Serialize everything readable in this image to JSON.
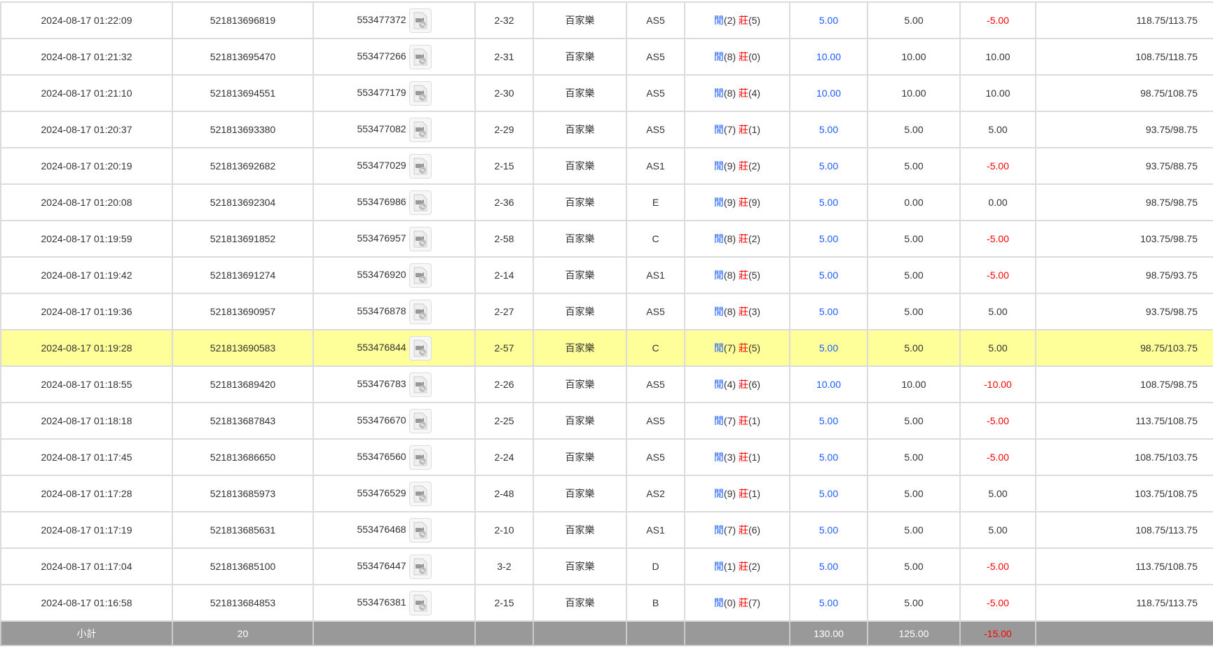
{
  "rows": [
    {
      "time": "2024-08-17 01:22:09",
      "bet_id": "521813696819",
      "round_id": "553477372",
      "table": "2-32",
      "game": "百家樂",
      "bet_type": "AS5",
      "player_label": "閒",
      "player": "(2)",
      "banker_label": "莊",
      "banker": "(5)",
      "bet": "5.00",
      "valid": "5.00",
      "win": "-5.00",
      "win_neg": true,
      "balance": "118.75/113.75"
    },
    {
      "time": "2024-08-17 01:21:32",
      "bet_id": "521813695470",
      "round_id": "553477266",
      "table": "2-31",
      "game": "百家樂",
      "bet_type": "AS5",
      "player_label": "閒",
      "player": "(8)",
      "banker_label": "莊",
      "banker": "(0)",
      "bet": "10.00",
      "valid": "10.00",
      "win": "10.00",
      "win_neg": false,
      "balance": "108.75/118.75"
    },
    {
      "time": "2024-08-17 01:21:10",
      "bet_id": "521813694551",
      "round_id": "553477179",
      "table": "2-30",
      "game": "百家樂",
      "bet_type": "AS5",
      "player_label": "閒",
      "player": "(8)",
      "banker_label": "莊",
      "banker": "(4)",
      "bet": "10.00",
      "valid": "10.00",
      "win": "10.00",
      "win_neg": false,
      "balance": "98.75/108.75"
    },
    {
      "time": "2024-08-17 01:20:37",
      "bet_id": "521813693380",
      "round_id": "553477082",
      "table": "2-29",
      "game": "百家樂",
      "bet_type": "AS5",
      "player_label": "閒",
      "player": "(7)",
      "banker_label": "莊",
      "banker": "(1)",
      "bet": "5.00",
      "valid": "5.00",
      "win": "5.00",
      "win_neg": false,
      "balance": "93.75/98.75"
    },
    {
      "time": "2024-08-17 01:20:19",
      "bet_id": "521813692682",
      "round_id": "553477029",
      "table": "2-15",
      "game": "百家樂",
      "bet_type": "AS1",
      "player_label": "閒",
      "player": "(9)",
      "banker_label": "莊",
      "banker": "(2)",
      "bet": "5.00",
      "valid": "5.00",
      "win": "-5.00",
      "win_neg": true,
      "balance": "93.75/88.75"
    },
    {
      "time": "2024-08-17 01:20:08",
      "bet_id": "521813692304",
      "round_id": "553476986",
      "table": "2-36",
      "game": "百家樂",
      "bet_type": "E",
      "player_label": "閒",
      "player": "(9)",
      "banker_label": "莊",
      "banker": "(9)",
      "bet": "5.00",
      "valid": "0.00",
      "win": "0.00",
      "win_neg": false,
      "balance": "98.75/98.75"
    },
    {
      "time": "2024-08-17 01:19:59",
      "bet_id": "521813691852",
      "round_id": "553476957",
      "table": "2-58",
      "game": "百家樂",
      "bet_type": "C",
      "player_label": "閒",
      "player": "(8)",
      "banker_label": "莊",
      "banker": "(2)",
      "bet": "5.00",
      "valid": "5.00",
      "win": "-5.00",
      "win_neg": true,
      "balance": "103.75/98.75"
    },
    {
      "time": "2024-08-17 01:19:42",
      "bet_id": "521813691274",
      "round_id": "553476920",
      "table": "2-14",
      "game": "百家樂",
      "bet_type": "AS1",
      "player_label": "閒",
      "player": "(8)",
      "banker_label": "莊",
      "banker": "(5)",
      "bet": "5.00",
      "valid": "5.00",
      "win": "-5.00",
      "win_neg": true,
      "balance": "98.75/93.75"
    },
    {
      "time": "2024-08-17 01:19:36",
      "bet_id": "521813690957",
      "round_id": "553476878",
      "table": "2-27",
      "game": "百家樂",
      "bet_type": "AS5",
      "player_label": "閒",
      "player": "(8)",
      "banker_label": "莊",
      "banker": "(3)",
      "bet": "5.00",
      "valid": "5.00",
      "win": "5.00",
      "win_neg": false,
      "balance": "93.75/98.75"
    },
    {
      "time": "2024-08-17 01:19:28",
      "bet_id": "521813690583",
      "round_id": "553476844",
      "table": "2-57",
      "game": "百家樂",
      "bet_type": "C",
      "player_label": "閒",
      "player": "(7)",
      "banker_label": "莊",
      "banker": "(5)",
      "bet": "5.00",
      "valid": "5.00",
      "win": "5.00",
      "win_neg": false,
      "balance": "98.75/103.75",
      "highlighted": true
    },
    {
      "time": "2024-08-17 01:18:55",
      "bet_id": "521813689420",
      "round_id": "553476783",
      "table": "2-26",
      "game": "百家樂",
      "bet_type": "AS5",
      "player_label": "閒",
      "player": "(4)",
      "banker_label": "莊",
      "banker": "(6)",
      "bet": "10.00",
      "valid": "10.00",
      "win": "-10.00",
      "win_neg": true,
      "balance": "108.75/98.75"
    },
    {
      "time": "2024-08-17 01:18:18",
      "bet_id": "521813687843",
      "round_id": "553476670",
      "table": "2-25",
      "game": "百家樂",
      "bet_type": "AS5",
      "player_label": "閒",
      "player": "(7)",
      "banker_label": "莊",
      "banker": "(1)",
      "bet": "5.00",
      "valid": "5.00",
      "win": "-5.00",
      "win_neg": true,
      "balance": "113.75/108.75"
    },
    {
      "time": "2024-08-17 01:17:45",
      "bet_id": "521813686650",
      "round_id": "553476560",
      "table": "2-24",
      "game": "百家樂",
      "bet_type": "AS5",
      "player_label": "閒",
      "player": "(3)",
      "banker_label": "莊",
      "banker": "(1)",
      "bet": "5.00",
      "valid": "5.00",
      "win": "-5.00",
      "win_neg": true,
      "balance": "108.75/103.75"
    },
    {
      "time": "2024-08-17 01:17:28",
      "bet_id": "521813685973",
      "round_id": "553476529",
      "table": "2-48",
      "game": "百家樂",
      "bet_type": "AS2",
      "player_label": "閒",
      "player": "(9)",
      "banker_label": "莊",
      "banker": "(1)",
      "bet": "5.00",
      "valid": "5.00",
      "win": "5.00",
      "win_neg": false,
      "balance": "103.75/108.75"
    },
    {
      "time": "2024-08-17 01:17:19",
      "bet_id": "521813685631",
      "round_id": "553476468",
      "table": "2-10",
      "game": "百家樂",
      "bet_type": "AS1",
      "player_label": "閒",
      "player": "(7)",
      "banker_label": "莊",
      "banker": "(6)",
      "bet": "5.00",
      "valid": "5.00",
      "win": "5.00",
      "win_neg": false,
      "balance": "108.75/113.75"
    },
    {
      "time": "2024-08-17 01:17:04",
      "bet_id": "521813685100",
      "round_id": "553476447",
      "table": "3-2",
      "game": "百家樂",
      "bet_type": "D",
      "player_label": "閒",
      "player": "(1)",
      "banker_label": "莊",
      "banker": "(2)",
      "bet": "5.00",
      "valid": "5.00",
      "win": "-5.00",
      "win_neg": true,
      "balance": "113.75/108.75"
    },
    {
      "time": "2024-08-17 01:16:58",
      "bet_id": "521813684853",
      "round_id": "553476381",
      "table": "2-15",
      "game": "百家樂",
      "bet_type": "B",
      "player_label": "閒",
      "player": "(0)",
      "banker_label": "莊",
      "banker": "(7)",
      "bet": "5.00",
      "valid": "5.00",
      "win": "-5.00",
      "win_neg": true,
      "balance": "118.75/113.75"
    }
  ],
  "footer": {
    "label": "小計",
    "count": "20",
    "bet_total": "130.00",
    "valid_total": "125.00",
    "win_total": "-15.00"
  },
  "icons": {
    "video": "video-replay-icon"
  },
  "colors": {
    "highlight": "#ffff99",
    "positive_blue": "#1a5cff",
    "negative_red": "#ff0000",
    "footer_bg": "#999999"
  }
}
